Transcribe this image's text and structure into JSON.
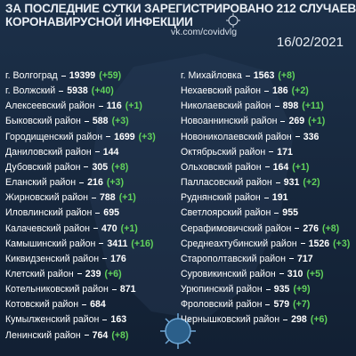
{
  "header": {
    "title_line1": "ЗА ПОСЛЕДНИЕ СУТКИ ЗАРЕГИСТРИРОВАНО 212 СЛУЧАЕВ",
    "title_line2": "КОРОНАВИРУСНОЙ ИНФЕКЦИИ",
    "source": "vk.com/covidvlg",
    "date": "16/02/2021"
  },
  "columns": [
    [
      {
        "name": "г. Волгоград",
        "total": "19399",
        "change": "(+59)"
      },
      {
        "name": "г. Волжский",
        "total": "5938",
        "change": "(+40)"
      },
      {
        "name": "Алексеевский район",
        "total": "116",
        "change": "(+1)"
      },
      {
        "name": "Быковский район",
        "total": "588",
        "change": "(+3)"
      },
      {
        "name": "Городищенский район",
        "total": "1699",
        "change": "(+3)"
      },
      {
        "name": "Даниловский район",
        "total": "144"
      },
      {
        "name": "Дубовский район",
        "total": "305",
        "change": "(+8)"
      },
      {
        "name": "Еланский район",
        "total": "216",
        "change": "(+3)"
      },
      {
        "name": "Жирновский район",
        "total": "788",
        "change": "(+1)"
      },
      {
        "name": "Иловлинский район",
        "total": "695"
      },
      {
        "name": "Калачевский район",
        "total": "470",
        "change": "(+1)"
      },
      {
        "name": "Камышинский район",
        "total": "3411",
        "change": "(+16)"
      },
      {
        "name": "Киквидзенский район",
        "total": "176"
      },
      {
        "name": "Клетский район",
        "total": "239",
        "change": "(+6)"
      },
      {
        "name": "Котельниковский район",
        "total": "871"
      },
      {
        "name": "Котовский район",
        "total": "684"
      },
      {
        "name": "Кумылженский район",
        "total": "163"
      },
      {
        "name": "Ленинский район",
        "total": "764",
        "change": "(+8)"
      }
    ],
    [
      {
        "name": "г. Михайловка",
        "total": "1563",
        "change": "(+8)"
      },
      {
        "name": "Нехаевский район",
        "total": "186",
        "change": "(+2)"
      },
      {
        "name": "Николаевский район",
        "total": "898",
        "change": "(+11)"
      },
      {
        "name": "Новоаннинский район",
        "total": "269",
        "change": "(+1)"
      },
      {
        "name": "Новониколаевский район",
        "total": "336"
      },
      {
        "name": "Октябрьский район",
        "total": "171"
      },
      {
        "name": "Ольховский район",
        "total": "164",
        "change": "(+1)"
      },
      {
        "name": "Палласовский район",
        "total": "931",
        "change": "(+2)"
      },
      {
        "name": "Руднянский район",
        "total": "191"
      },
      {
        "name": "Светлоярский район",
        "total": "955"
      },
      {
        "name": "Серафимовичский район",
        "total": "276",
        "change": "(+8)"
      },
      {
        "name": "Среднеахтубинский район",
        "total": "1526",
        "change": "(+3)"
      },
      {
        "name": "Старополтавский район",
        "total": "717"
      },
      {
        "name": "Суровикинский район",
        "total": "310",
        "change": "(+5)"
      },
      {
        "name": "Урюпинский район",
        "total": "935",
        "change": "(+9)"
      },
      {
        "name": "Фроловский район",
        "total": "579",
        "change": "(+7)"
      },
      {
        "name": "Чернышковский район",
        "total": "298",
        "change": "(+6)"
      }
    ]
  ]
}
